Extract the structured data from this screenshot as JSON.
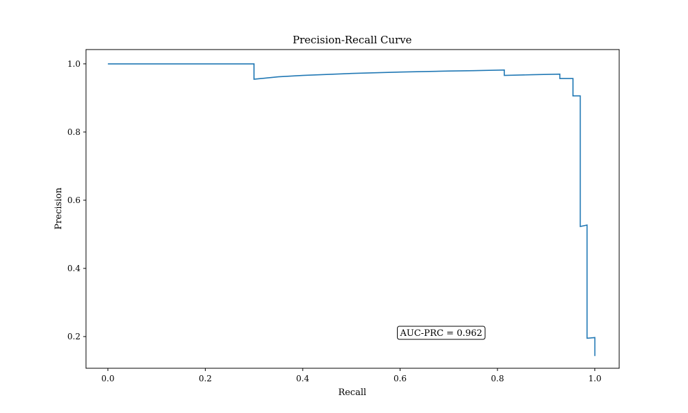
{
  "chart_data": {
    "type": "line",
    "title": "Precision-Recall Curve",
    "xlabel": "Recall",
    "ylabel": "Precision",
    "xlim": [
      -0.045,
      1.05
    ],
    "ylim": [
      0.107,
      1.042
    ],
    "grid": false,
    "legend": "none",
    "x_ticks": [
      0.0,
      0.2,
      0.4,
      0.6,
      0.8,
      1.0
    ],
    "x_tick_labels": [
      "0.0",
      "0.2",
      "0.4",
      "0.6",
      "0.8",
      "1.0"
    ],
    "y_ticks": [
      0.2,
      0.4,
      0.6,
      0.8,
      1.0
    ],
    "y_tick_labels": [
      "0.2",
      "0.4",
      "0.6",
      "0.8",
      "1.0"
    ],
    "series": [
      {
        "color": "#1f77b4",
        "x": [
          0.0,
          0.3,
          0.3,
          0.35,
          0.4,
          0.5,
          0.6,
          0.7,
          0.75,
          0.814,
          0.814,
          0.87,
          0.928,
          0.928,
          0.955,
          0.955,
          0.97,
          0.97,
          0.984,
          0.984,
          1.0,
          1.0
        ],
        "y": [
          1.0,
          1.0,
          0.955,
          0.962,
          0.966,
          0.972,
          0.976,
          0.979,
          0.98,
          0.982,
          0.966,
          0.968,
          0.97,
          0.957,
          0.957,
          0.906,
          0.906,
          0.523,
          0.527,
          0.195,
          0.197,
          0.143
        ]
      }
    ],
    "annotations": [
      {
        "text": "AUC-PRC = 0.962",
        "x": 0.6,
        "y": 0.21
      }
    ]
  }
}
